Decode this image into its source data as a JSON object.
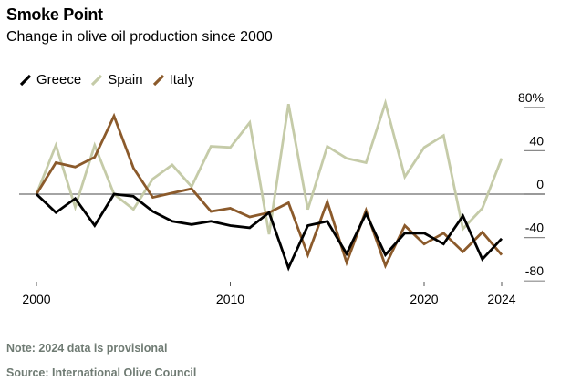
{
  "header": {
    "title": "Smoke Point",
    "subtitle": "Change in olive oil production since 2000"
  },
  "footer": {
    "note": "Note: 2024 data is provisional",
    "source": "Source: International Olive Council"
  },
  "chart_data": {
    "type": "line",
    "title": "Smoke Point",
    "subtitle": "Change in olive oil production since 2000",
    "xlabel": "",
    "ylabel": "",
    "x": [
      2000,
      2001,
      2002,
      2003,
      2004,
      2005,
      2006,
      2007,
      2008,
      2009,
      2010,
      2011,
      2012,
      2013,
      2014,
      2015,
      2016,
      2017,
      2018,
      2019,
      2020,
      2021,
      2022,
      2023,
      2024
    ],
    "x_ticks": [
      "2000",
      "2010",
      "2020",
      "2024"
    ],
    "x_tick_values": [
      2000,
      2010,
      2020,
      2024
    ],
    "y_ticks": [
      "80%",
      "40",
      "0",
      "-40",
      "-80"
    ],
    "y_tick_values": [
      80,
      40,
      0,
      -40,
      -80
    ],
    "ylim": [
      -90,
      85
    ],
    "xlim": [
      2000,
      2024
    ],
    "y_axis_side": "right",
    "zero_line": true,
    "legend_position": "top-left",
    "series": [
      {
        "name": "Greece",
        "color": "#000000",
        "values": [
          0,
          -17,
          -4,
          -29,
          0,
          -2,
          -16,
          -25,
          -28,
          -25,
          -29,
          -31,
          -17,
          -68,
          -29,
          -25,
          -55,
          -18,
          -56,
          -36,
          -36,
          -46,
          -20,
          -60,
          -41
        ]
      },
      {
        "name": "Spain",
        "color": "#c5cba8",
        "values": [
          0,
          45,
          -12,
          45,
          0,
          -14,
          14,
          27,
          7,
          44,
          43,
          66,
          -37,
          83,
          -14,
          44,
          33,
          29,
          84,
          16,
          43,
          54,
          -32,
          -13,
          33
        ]
      },
      {
        "name": "Italy",
        "color": "#8b5a2b",
        "values": [
          0,
          29,
          25,
          34,
          72,
          24,
          -3,
          1,
          5,
          -16,
          -13,
          -21,
          -17,
          -8,
          -56,
          -7,
          -63,
          -15,
          -66,
          -29,
          -46,
          -36,
          -53,
          -35,
          -56
        ]
      }
    ]
  }
}
